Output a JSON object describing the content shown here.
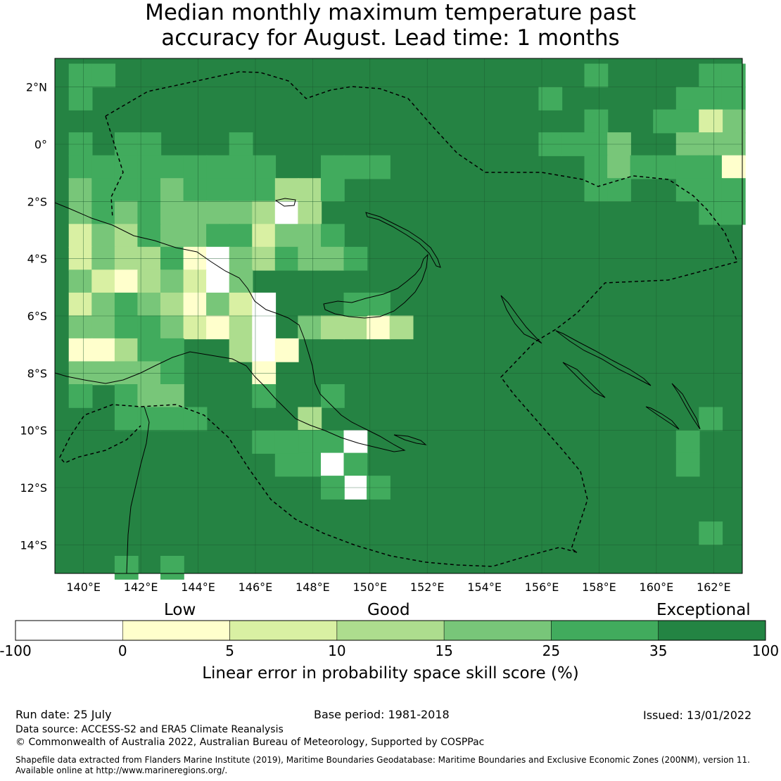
{
  "title": {
    "line1": "Median monthly maximum temperature past",
    "line2": "accuracy for August. Lead time: 1 months"
  },
  "map": {
    "lon_ticks": [
      "140°E",
      "142°E",
      "144°E",
      "146°E",
      "148°E",
      "150°E",
      "152°E",
      "154°E",
      "156°E",
      "158°E",
      "160°E",
      "162°E"
    ],
    "lat_ticks": [
      "2°N",
      "0°",
      "2°S",
      "4°S",
      "6°S",
      "8°S",
      "10°S",
      "12°S",
      "14°S"
    ],
    "lon_range": [
      139,
      163
    ],
    "lat_range": [
      -15,
      3
    ],
    "cell_size_deg": 0.83,
    "base_color": "#258343",
    "patches": [
      {
        "lon": 139.9,
        "lat": 2.4,
        "level": "25-35"
      },
      {
        "lon": 140.7,
        "lat": 2.4,
        "level": "25-35"
      },
      {
        "lon": 139.9,
        "lat": 1.6,
        "level": "25-35"
      },
      {
        "lon": 139.9,
        "lat": 0.0,
        "level": "25-35"
      },
      {
        "lon": 139.9,
        "lat": -0.8,
        "level": "25-35"
      },
      {
        "lon": 139.9,
        "lat": -1.6,
        "level": "15-25"
      },
      {
        "lon": 140.7,
        "lat": -0.8,
        "level": "25-35"
      },
      {
        "lon": 141.5,
        "lat": -0.8,
        "level": "25-35"
      },
      {
        "lon": 142.3,
        "lat": -0.8,
        "level": "25-35"
      },
      {
        "lon": 141.5,
        "lat": 0.0,
        "level": "25-35"
      },
      {
        "lon": 142.3,
        "lat": 0.0,
        "level": "25-35"
      },
      {
        "lon": 143.1,
        "lat": -0.8,
        "level": "25-35"
      },
      {
        "lon": 143.9,
        "lat": -0.8,
        "level": "25-35"
      },
      {
        "lon": 144.7,
        "lat": -0.8,
        "level": "25-35"
      },
      {
        "lon": 145.5,
        "lat": -0.8,
        "level": "25-35"
      },
      {
        "lon": 146.3,
        "lat": -0.8,
        "level": "25-35"
      },
      {
        "lon": 145.5,
        "lat": 0.0,
        "level": "25-35"
      },
      {
        "lon": 140.7,
        "lat": -1.6,
        "level": "25-35"
      },
      {
        "lon": 141.5,
        "lat": -1.6,
        "level": "25-35"
      },
      {
        "lon": 142.3,
        "lat": -1.6,
        "level": "25-35"
      },
      {
        "lon": 143.1,
        "lat": -1.6,
        "level": "15-25"
      },
      {
        "lon": 143.9,
        "lat": -1.6,
        "level": "25-35"
      },
      {
        "lon": 144.7,
        "lat": -1.6,
        "level": "25-35"
      },
      {
        "lon": 145.5,
        "lat": -1.6,
        "level": "25-35"
      },
      {
        "lon": 146.3,
        "lat": -1.6,
        "level": "25-35"
      },
      {
        "lon": 147.1,
        "lat": -1.6,
        "level": "10-15"
      },
      {
        "lon": 147.9,
        "lat": -1.6,
        "level": "10-15"
      },
      {
        "lon": 148.7,
        "lat": -1.6,
        "level": "25-35"
      },
      {
        "lon": 148.7,
        "lat": -0.8,
        "level": "25-35"
      },
      {
        "lon": 149.5,
        "lat": -0.8,
        "level": "25-35"
      },
      {
        "lon": 150.3,
        "lat": -0.8,
        "level": "25-35"
      },
      {
        "lon": 139.9,
        "lat": -2.4,
        "level": "15-25"
      },
      {
        "lon": 140.7,
        "lat": -2.4,
        "level": "25-35"
      },
      {
        "lon": 141.5,
        "lat": -2.4,
        "level": "15-25"
      },
      {
        "lon": 142.3,
        "lat": -2.4,
        "level": "25-35"
      },
      {
        "lon": 143.1,
        "lat": -2.4,
        "level": "15-25"
      },
      {
        "lon": 143.9,
        "lat": -2.4,
        "level": "15-25"
      },
      {
        "lon": 144.7,
        "lat": -2.4,
        "level": "15-25"
      },
      {
        "lon": 145.5,
        "lat": -2.4,
        "level": "15-25"
      },
      {
        "lon": 146.3,
        "lat": -2.4,
        "level": "10-15"
      },
      {
        "lon": 147.1,
        "lat": -2.4,
        "level": "neg"
      },
      {
        "lon": 147.9,
        "lat": -2.4,
        "level": "10-15"
      },
      {
        "lon": 139.9,
        "lat": -3.2,
        "level": "5-10"
      },
      {
        "lon": 140.7,
        "lat": -3.2,
        "level": "15-25"
      },
      {
        "lon": 141.5,
        "lat": -3.2,
        "level": "10-15"
      },
      {
        "lon": 142.3,
        "lat": -3.2,
        "level": "25-35"
      },
      {
        "lon": 143.1,
        "lat": -3.2,
        "level": "15-25"
      },
      {
        "lon": 143.9,
        "lat": -3.2,
        "level": "15-25"
      },
      {
        "lon": 144.7,
        "lat": -3.2,
        "level": "25-35"
      },
      {
        "lon": 145.5,
        "lat": -3.2,
        "level": "25-35"
      },
      {
        "lon": 146.3,
        "lat": -3.2,
        "level": "5-10"
      },
      {
        "lon": 147.1,
        "lat": -3.2,
        "level": "15-25"
      },
      {
        "lon": 147.9,
        "lat": -3.2,
        "level": "15-25"
      },
      {
        "lon": 148.7,
        "lat": -3.2,
        "level": "25-35"
      },
      {
        "lon": 139.9,
        "lat": -4.0,
        "level": "5-10"
      },
      {
        "lon": 140.7,
        "lat": -4.0,
        "level": "15-25"
      },
      {
        "lon": 141.5,
        "lat": -4.0,
        "level": "10-15"
      },
      {
        "lon": 142.3,
        "lat": -4.0,
        "level": "10-15"
      },
      {
        "lon": 143.1,
        "lat": -4.0,
        "level": "25-35"
      },
      {
        "lon": 143.9,
        "lat": -4.0,
        "level": "0-5"
      },
      {
        "lon": 144.7,
        "lat": -4.0,
        "level": "neg"
      },
      {
        "lon": 145.5,
        "lat": -4.0,
        "level": "15-25"
      },
      {
        "lon": 146.3,
        "lat": -4.0,
        "level": "10-15"
      },
      {
        "lon": 147.1,
        "lat": -4.0,
        "level": "25-35"
      },
      {
        "lon": 147.9,
        "lat": -4.0,
        "level": "15-25"
      },
      {
        "lon": 148.7,
        "lat": -4.0,
        "level": "15-25"
      },
      {
        "lon": 149.5,
        "lat": -4.0,
        "level": "25-35"
      },
      {
        "lon": 139.9,
        "lat": -4.8,
        "level": "15-25"
      },
      {
        "lon": 140.7,
        "lat": -4.8,
        "level": "5-10"
      },
      {
        "lon": 141.5,
        "lat": -4.8,
        "level": "0-5"
      },
      {
        "lon": 142.3,
        "lat": -4.8,
        "level": "10-15"
      },
      {
        "lon": 143.1,
        "lat": -4.8,
        "level": "15-25"
      },
      {
        "lon": 143.9,
        "lat": -4.8,
        "level": "5-10"
      },
      {
        "lon": 144.7,
        "lat": -4.8,
        "level": "neg"
      },
      {
        "lon": 145.5,
        "lat": -4.8,
        "level": "15-25"
      },
      {
        "lon": 139.9,
        "lat": -5.6,
        "level": "5-10"
      },
      {
        "lon": 140.7,
        "lat": -5.6,
        "level": "15-25"
      },
      {
        "lon": 141.5,
        "lat": -5.6,
        "level": "25-35"
      },
      {
        "lon": 142.3,
        "lat": -5.6,
        "level": "15-25"
      },
      {
        "lon": 143.1,
        "lat": -5.6,
        "level": "10-15"
      },
      {
        "lon": 143.9,
        "lat": -5.6,
        "level": "0-5"
      },
      {
        "lon": 144.7,
        "lat": -5.6,
        "level": "15-25"
      },
      {
        "lon": 145.5,
        "lat": -5.6,
        "level": "5-10"
      },
      {
        "lon": 146.3,
        "lat": -5.6,
        "level": "neg"
      },
      {
        "lon": 150.3,
        "lat": -5.6,
        "level": "25-35"
      },
      {
        "lon": 139.9,
        "lat": -6.4,
        "level": "15-25"
      },
      {
        "lon": 140.7,
        "lat": -6.4,
        "level": "15-25"
      },
      {
        "lon": 141.5,
        "lat": -6.4,
        "level": "25-35"
      },
      {
        "lon": 142.3,
        "lat": -6.4,
        "level": "25-35"
      },
      {
        "lon": 143.1,
        "lat": -6.4,
        "level": "15-25"
      },
      {
        "lon": 143.9,
        "lat": -6.4,
        "level": "5-10"
      },
      {
        "lon": 144.7,
        "lat": -6.4,
        "level": "0-5"
      },
      {
        "lon": 145.5,
        "lat": -6.4,
        "level": "10-15"
      },
      {
        "lon": 146.3,
        "lat": -6.4,
        "level": "neg"
      },
      {
        "lon": 147.9,
        "lat": -6.4,
        "level": "15-25"
      },
      {
        "lon": 148.7,
        "lat": -6.4,
        "level": "10-15"
      },
      {
        "lon": 149.5,
        "lat": -6.4,
        "level": "10-15"
      },
      {
        "lon": 150.3,
        "lat": -6.4,
        "level": "0-5"
      },
      {
        "lon": 151.1,
        "lat": -6.4,
        "level": "10-15"
      },
      {
        "lon": 139.9,
        "lat": -7.2,
        "level": "0-5"
      },
      {
        "lon": 140.7,
        "lat": -7.2,
        "level": "0-5"
      },
      {
        "lon": 141.5,
        "lat": -7.2,
        "level": "10-15"
      },
      {
        "lon": 142.3,
        "lat": -7.2,
        "level": "25-35"
      },
      {
        "lon": 143.1,
        "lat": -7.2,
        "level": "25-35"
      },
      {
        "lon": 145.5,
        "lat": -7.2,
        "level": "10-15"
      },
      {
        "lon": 146.3,
        "lat": -7.2,
        "level": "neg"
      },
      {
        "lon": 147.1,
        "lat": -7.2,
        "level": "0-5"
      },
      {
        "lon": 139.9,
        "lat": -8.0,
        "level": "15-25"
      },
      {
        "lon": 140.7,
        "lat": -8.0,
        "level": "15-25"
      },
      {
        "lon": 141.5,
        "lat": -8.0,
        "level": "15-25"
      },
      {
        "lon": 142.3,
        "lat": -8.0,
        "level": "15-25"
      },
      {
        "lon": 143.1,
        "lat": -8.0,
        "level": "25-35"
      },
      {
        "lon": 146.3,
        "lat": -8.0,
        "level": "0-5"
      },
      {
        "lon": 146.3,
        "lat": -8.8,
        "level": "25-35"
      },
      {
        "lon": 148.7,
        "lat": -8.8,
        "level": "25-35"
      },
      {
        "lon": 139.9,
        "lat": -8.8,
        "level": "25-35"
      },
      {
        "lon": 141.5,
        "lat": -8.8,
        "level": "25-35"
      },
      {
        "lon": 142.3,
        "lat": -8.8,
        "level": "15-25"
      },
      {
        "lon": 143.1,
        "lat": -8.8,
        "level": "15-25"
      },
      {
        "lon": 147.9,
        "lat": -9.6,
        "level": "10-15"
      },
      {
        "lon": 147.9,
        "lat": -10.4,
        "level": "25-35"
      },
      {
        "lon": 148.7,
        "lat": -10.4,
        "level": "25-35"
      },
      {
        "lon": 149.5,
        "lat": -10.4,
        "level": "neg"
      },
      {
        "lon": 141.5,
        "lat": -9.6,
        "level": "25-35"
      },
      {
        "lon": 142.3,
        "lat": -9.6,
        "level": "25-35"
      },
      {
        "lon": 143.1,
        "lat": -9.6,
        "level": "25-35"
      },
      {
        "lon": 143.9,
        "lat": -9.6,
        "level": "25-35"
      },
      {
        "lon": 147.1,
        "lat": -11.2,
        "level": "25-35"
      },
      {
        "lon": 147.9,
        "lat": -11.2,
        "level": "25-35"
      },
      {
        "lon": 148.7,
        "lat": -11.2,
        "level": "neg"
      },
      {
        "lon": 149.5,
        "lat": -11.2,
        "level": "25-35"
      },
      {
        "lon": 149.5,
        "lat": -12.0,
        "level": "neg"
      },
      {
        "lon": 150.3,
        "lat": -12.0,
        "level": "25-35"
      },
      {
        "lon": 148.7,
        "lat": -12.0,
        "level": "25-35"
      },
      {
        "lon": 149.5,
        "lat": -5.6,
        "level": "25-35"
      },
      {
        "lon": 146.3,
        "lat": -10.4,
        "level": "25-35"
      },
      {
        "lon": 147.1,
        "lat": -10.4,
        "level": "25-35"
      },
      {
        "lon": 157.9,
        "lat": 2.4,
        "level": "25-35"
      },
      {
        "lon": 161.9,
        "lat": 2.4,
        "level": "25-35"
      },
      {
        "lon": 162.7,
        "lat": 2.4,
        "level": "25-35"
      },
      {
        "lon": 156.3,
        "lat": 1.6,
        "level": "25-35"
      },
      {
        "lon": 161.1,
        "lat": 1.6,
        "level": "25-35"
      },
      {
        "lon": 161.9,
        "lat": 1.6,
        "level": "25-35"
      },
      {
        "lon": 162.7,
        "lat": 1.6,
        "level": "25-35"
      },
      {
        "lon": 161.1,
        "lat": 0.8,
        "level": "25-35"
      },
      {
        "lon": 161.9,
        "lat": 0.8,
        "level": "15-25"
      },
      {
        "lon": 162.7,
        "lat": 0.8,
        "level": "15-25"
      },
      {
        "lon": 157.9,
        "lat": 0.8,
        "level": "25-35"
      },
      {
        "lon": 160.3,
        "lat": 0.8,
        "level": "25-35"
      },
      {
        "lon": 156.3,
        "lat": 0.0,
        "level": "25-35"
      },
      {
        "lon": 157.1,
        "lat": 0.0,
        "level": "25-35"
      },
      {
        "lon": 157.9,
        "lat": 0.0,
        "level": "25-35"
      },
      {
        "lon": 158.7,
        "lat": 0.0,
        "level": "15-25"
      },
      {
        "lon": 161.1,
        "lat": 0.0,
        "level": "15-25"
      },
      {
        "lon": 161.9,
        "lat": 0.8,
        "level": "5-10"
      },
      {
        "lon": 161.9,
        "lat": 0.0,
        "level": "15-25"
      },
      {
        "lon": 162.7,
        "lat": 0.0,
        "level": "15-25"
      },
      {
        "lon": 157.9,
        "lat": -0.8,
        "level": "25-35"
      },
      {
        "lon": 158.7,
        "lat": -0.8,
        "level": "15-25"
      },
      {
        "lon": 159.5,
        "lat": -0.8,
        "level": "25-35"
      },
      {
        "lon": 160.3,
        "lat": -0.8,
        "level": "25-35"
      },
      {
        "lon": 161.1,
        "lat": -0.8,
        "level": "25-35"
      },
      {
        "lon": 161.9,
        "lat": -0.8,
        "level": "25-35"
      },
      {
        "lon": 162.7,
        "lat": -0.8,
        "level": "0-5"
      },
      {
        "lon": 157.9,
        "lat": -1.6,
        "level": "25-35"
      },
      {
        "lon": 158.7,
        "lat": -1.6,
        "level": "25-35"
      },
      {
        "lon": 161.1,
        "lat": -1.6,
        "level": "25-35"
      },
      {
        "lon": 161.9,
        "lat": -1.6,
        "level": "25-35"
      },
      {
        "lon": 162.7,
        "lat": -1.6,
        "level": "25-35"
      },
      {
        "lon": 161.9,
        "lat": -2.4,
        "level": "25-35"
      },
      {
        "lon": 162.7,
        "lat": -2.4,
        "level": "25-35"
      },
      {
        "lon": 161.9,
        "lat": -9.6,
        "level": "25-35"
      },
      {
        "lon": 161.1,
        "lat": -10.4,
        "level": "25-35"
      },
      {
        "lon": 161.1,
        "lat": -11.2,
        "level": "25-35"
      },
      {
        "lon": 161.9,
        "lat": -13.6,
        "level": "25-35"
      },
      {
        "lon": 141.5,
        "lat": -14.8,
        "level": "25-35"
      },
      {
        "lon": 143.1,
        "lat": -14.8,
        "level": "25-35"
      }
    ],
    "level_colors": {
      "neg": "#ffffff",
      "0-5": "#ffffcc",
      "5-10": "#d9f0a3",
      "10-15": "#addd8e",
      "15-25": "#78c679",
      "25-35": "#41ab5d",
      "35-100": "#238443"
    }
  },
  "colorbar": {
    "categories": [
      "Low",
      "Good",
      "Exceptional"
    ],
    "ticks": [
      "-100",
      "0",
      "5",
      "10",
      "15",
      "25",
      "35",
      "100"
    ],
    "colors": [
      "#ffffff",
      "#ffffcc",
      "#d9f0a3",
      "#addd8e",
      "#78c679",
      "#41ab5d",
      "#238443"
    ],
    "caption": "Linear error in probability space skill score (%)"
  },
  "footer": {
    "run_date": "Run date: 25 July",
    "base_period": "Base period: 1981-2018",
    "issued": "Issued: 13/01/2022",
    "data_source": "Data source: ACCESS-S2 and ERA5 Climate Reanalysis",
    "copyright": "© Commonwealth of Australia 2022, Australian Bureau of Meteorology, Supported by COSPPac",
    "shapefile_line1": "Shapefile data extracted from Flanders Marine Institute (2019), Maritime Boundaries Geodatabase: Maritime Boundaries and Exclusive Economic Zones (200NM), version 11.",
    "shapefile_line2": "Available online at http://www.marineregions.org/."
  }
}
